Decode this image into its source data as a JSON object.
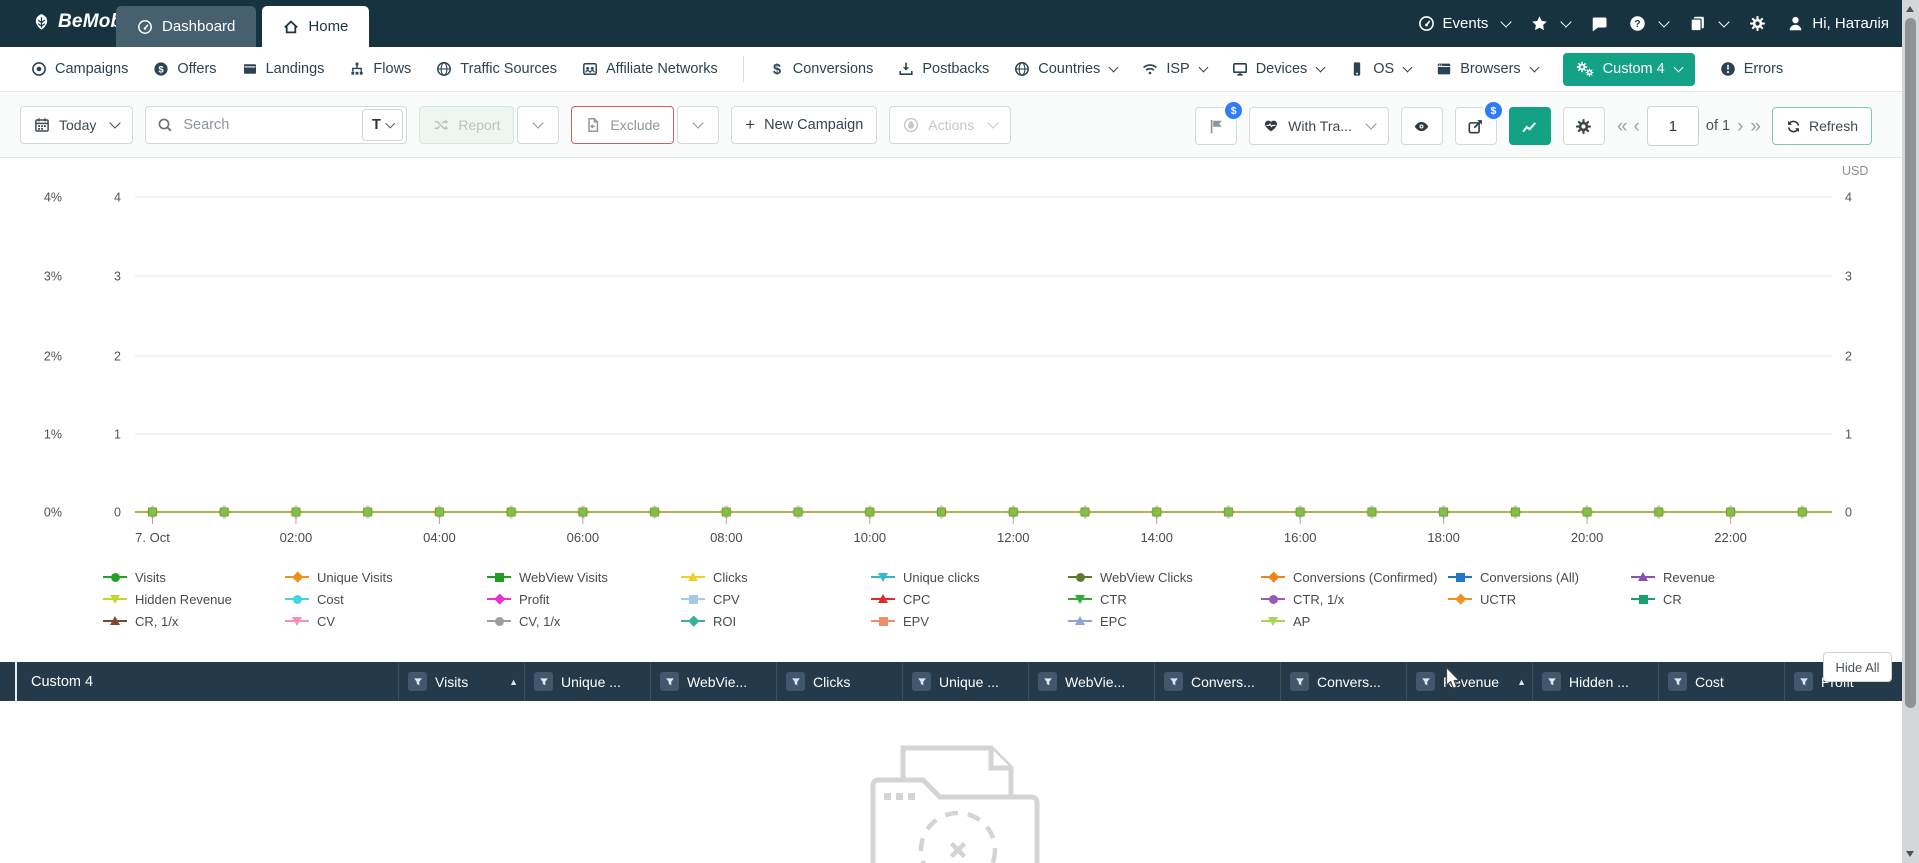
{
  "topbar": {
    "logo_text": "BeMob",
    "tabs": [
      {
        "id": "dashboard",
        "label": "Dashboard",
        "icon": "gauge",
        "active": false
      },
      {
        "id": "home",
        "label": "Home",
        "icon": "home",
        "active": true
      }
    ],
    "right_items": [
      {
        "id": "events",
        "label": "Events",
        "icon": "gauge",
        "chevron": true
      },
      {
        "id": "favorites",
        "label": "",
        "icon": "star",
        "chevron": true
      },
      {
        "id": "feedback",
        "label": "",
        "icon": "chat",
        "chevron": false
      },
      {
        "id": "help",
        "label": "",
        "icon": "help",
        "chevron": true
      },
      {
        "id": "pages",
        "label": "",
        "icon": "cards",
        "chevron": true
      },
      {
        "id": "settings",
        "label": "",
        "icon": "gear",
        "chevron": false
      },
      {
        "id": "account",
        "label": "Hi, Наталія",
        "icon": "user",
        "chevron": false
      }
    ]
  },
  "nav": {
    "items": [
      {
        "id": "campaigns",
        "label": "Campaigns",
        "icon": "target"
      },
      {
        "id": "offers",
        "label": "Offers",
        "icon": "dollar-circle"
      },
      {
        "id": "landings",
        "label": "Landings",
        "icon": "landing"
      },
      {
        "id": "flows",
        "label": "Flows",
        "icon": "flow"
      },
      {
        "id": "traffic-sources",
        "label": "Traffic Sources",
        "icon": "globe"
      },
      {
        "id": "affiliate-networks",
        "label": "Affiliate Networks",
        "icon": "network"
      },
      {
        "id": "divider-1",
        "divider": true
      },
      {
        "id": "conversions",
        "label": "Conversions",
        "icon": "dollar"
      },
      {
        "id": "postbacks",
        "label": "Postbacks",
        "icon": "download"
      },
      {
        "id": "countries",
        "label": "Countries",
        "icon": "globe",
        "chevron": true
      },
      {
        "id": "isp",
        "label": "ISP",
        "icon": "wifi",
        "chevron": true
      },
      {
        "id": "devices",
        "label": "Devices",
        "icon": "monitor",
        "chevron": true
      },
      {
        "id": "os",
        "label": "OS",
        "icon": "phone",
        "chevron": true
      },
      {
        "id": "browsers",
        "label": "Browsers",
        "icon": "browser",
        "chevron": true
      },
      {
        "id": "custom4",
        "label": "Custom 4",
        "icon": "gears",
        "chevron": true,
        "active": true
      },
      {
        "id": "errors",
        "label": "Errors",
        "icon": "error"
      }
    ]
  },
  "toolbar": {
    "today_label": "Today",
    "search_placeholder": "Search",
    "search_type_label": "T",
    "report_label": "Report",
    "exclude_label": "Exclude",
    "new_campaign_label": "New Campaign",
    "actions_label": "Actions",
    "with_traffic_label": "With Tra...",
    "paid_badge": "$",
    "page_value": "1",
    "page_total_label": "of 1",
    "refresh_label": "Refresh"
  },
  "chart_data": {
    "type": "line",
    "title": "",
    "x_axis": {
      "points": 24,
      "interval": "1 hour",
      "tick_labels": [
        "7. Oct",
        "02:00",
        "04:00",
        "06:00",
        "08:00",
        "10:00",
        "12:00",
        "14:00",
        "16:00",
        "18:00",
        "20:00",
        "22:00"
      ]
    },
    "left_axis_percent": {
      "tick_labels": [
        "4%",
        "3%",
        "2%",
        "1%",
        "0%"
      ],
      "range": [
        0,
        4
      ]
    },
    "left_axis_count": {
      "tick_labels": [
        "4",
        "3",
        "2",
        "1",
        "0"
      ],
      "range": [
        0,
        4
      ]
    },
    "right_axis": {
      "title": "USD",
      "tick_labels": [
        "4",
        "3",
        "2",
        "1",
        "0"
      ],
      "range": [
        0,
        4
      ]
    },
    "grid": true,
    "legend_position": "bottom",
    "series": [
      {
        "name": "Visits",
        "uniform_value": 0
      },
      {
        "name": "Unique Visits",
        "uniform_value": 0
      },
      {
        "name": "WebView Visits",
        "uniform_value": 0
      },
      {
        "name": "Clicks",
        "uniform_value": 0
      },
      {
        "name": "Unique clicks",
        "uniform_value": 0
      },
      {
        "name": "WebView Clicks",
        "uniform_value": 0
      },
      {
        "name": "Conversions (Confirmed)",
        "uniform_value": 0
      },
      {
        "name": "Conversions (All)",
        "uniform_value": 0
      },
      {
        "name": "Revenue",
        "uniform_value": 0
      },
      {
        "name": "Hidden Revenue",
        "uniform_value": 0
      },
      {
        "name": "Cost",
        "uniform_value": 0
      },
      {
        "name": "Profit",
        "uniform_value": 0
      },
      {
        "name": "CPV",
        "uniform_value": 0
      },
      {
        "name": "CPC",
        "uniform_value": 0
      },
      {
        "name": "CTR",
        "uniform_value": 0
      },
      {
        "name": "CTR, 1/x",
        "uniform_value": 0
      },
      {
        "name": "UCTR",
        "uniform_value": 0
      },
      {
        "name": "CR",
        "uniform_value": 0
      },
      {
        "name": "CR, 1/x",
        "uniform_value": 0
      },
      {
        "name": "CV",
        "uniform_value": 0
      },
      {
        "name": "CV, 1/x",
        "uniform_value": 0
      },
      {
        "name": "ROI",
        "uniform_value": 0
      },
      {
        "name": "EPV",
        "uniform_value": 0
      },
      {
        "name": "EPC",
        "uniform_value": 0
      },
      {
        "name": "AP",
        "uniform_value": 0
      }
    ]
  },
  "legend": {
    "hide_all_label": "Hide All",
    "columns": 9,
    "items": [
      {
        "name": "Visits",
        "shape": "circle",
        "color": "#23a127"
      },
      {
        "name": "Unique Visits",
        "shape": "diamond",
        "color": "#f28f1c"
      },
      {
        "name": "WebView Visits",
        "shape": "square",
        "color": "#1f9e1f"
      },
      {
        "name": "Clicks",
        "shape": "triangle-up",
        "color": "#f0d028"
      },
      {
        "name": "Unique clicks",
        "shape": "triangle-down",
        "color": "#2eb9ce"
      },
      {
        "name": "WebView Clicks",
        "shape": "circle",
        "color": "#5f7a33"
      },
      {
        "name": "Conversions (Confirmed)",
        "shape": "diamond",
        "color": "#f2821e"
      },
      {
        "name": "Conversions (All)",
        "shape": "square",
        "color": "#2176cc"
      },
      {
        "name": "Revenue",
        "shape": "triangle-up",
        "color": "#8951b5"
      },
      {
        "name": "Hidden Revenue",
        "shape": "triangle-down",
        "color": "#c3d62e"
      },
      {
        "name": "Cost",
        "shape": "circle",
        "color": "#3fd6de"
      },
      {
        "name": "Profit",
        "shape": "diamond",
        "color": "#e433d3"
      },
      {
        "name": "CPV",
        "shape": "square",
        "color": "#a3cbe3"
      },
      {
        "name": "CPC",
        "shape": "triangle-up",
        "color": "#dd2c2c"
      },
      {
        "name": "CTR",
        "shape": "triangle-down",
        "color": "#31a83a"
      },
      {
        "name": "CTR, 1/x",
        "shape": "circle",
        "color": "#9b59b6"
      },
      {
        "name": "UCTR",
        "shape": "diamond",
        "color": "#f2911e"
      },
      {
        "name": "CR",
        "shape": "square",
        "color": "#16a06c"
      },
      {
        "name": "CR, 1/x",
        "shape": "triangle-up",
        "color": "#7a4a2b"
      },
      {
        "name": "CV",
        "shape": "triangle-down",
        "color": "#f48fb9"
      },
      {
        "name": "CV, 1/x",
        "shape": "circle",
        "color": "#9e9e9e"
      },
      {
        "name": "ROI",
        "shape": "diamond",
        "color": "#3aaf9a"
      },
      {
        "name": "EPV",
        "shape": "square",
        "color": "#f28d6a"
      },
      {
        "name": "EPC",
        "shape": "triangle-up",
        "color": "#8fa3d8"
      },
      {
        "name": "AP",
        "shape": "triangle-down",
        "color": "#a8d65c"
      }
    ]
  },
  "table": {
    "group_column_label": "Custom 4",
    "columns": [
      {
        "label": "Visits",
        "sorted": "asc"
      },
      {
        "label": "Unique ..."
      },
      {
        "label": "WebVie..."
      },
      {
        "label": "Clicks"
      },
      {
        "label": "Unique ..."
      },
      {
        "label": "WebVie..."
      },
      {
        "label": "Convers..."
      },
      {
        "label": "Convers..."
      },
      {
        "label": "Revenue",
        "sorted": "asc",
        "cursor": true
      },
      {
        "label": "Hidden ..."
      },
      {
        "label": "Cost"
      },
      {
        "label": "Profit"
      }
    ]
  },
  "colors": {
    "brand_teal": "#13a286",
    "topbar_bg": "#173340",
    "table_header_bg": "#24394a",
    "badge_blue": "#2f7df6",
    "exclude_border": "#cf5f5f",
    "line_color": "#aeb54b",
    "marker_green": "#7fc24a"
  }
}
